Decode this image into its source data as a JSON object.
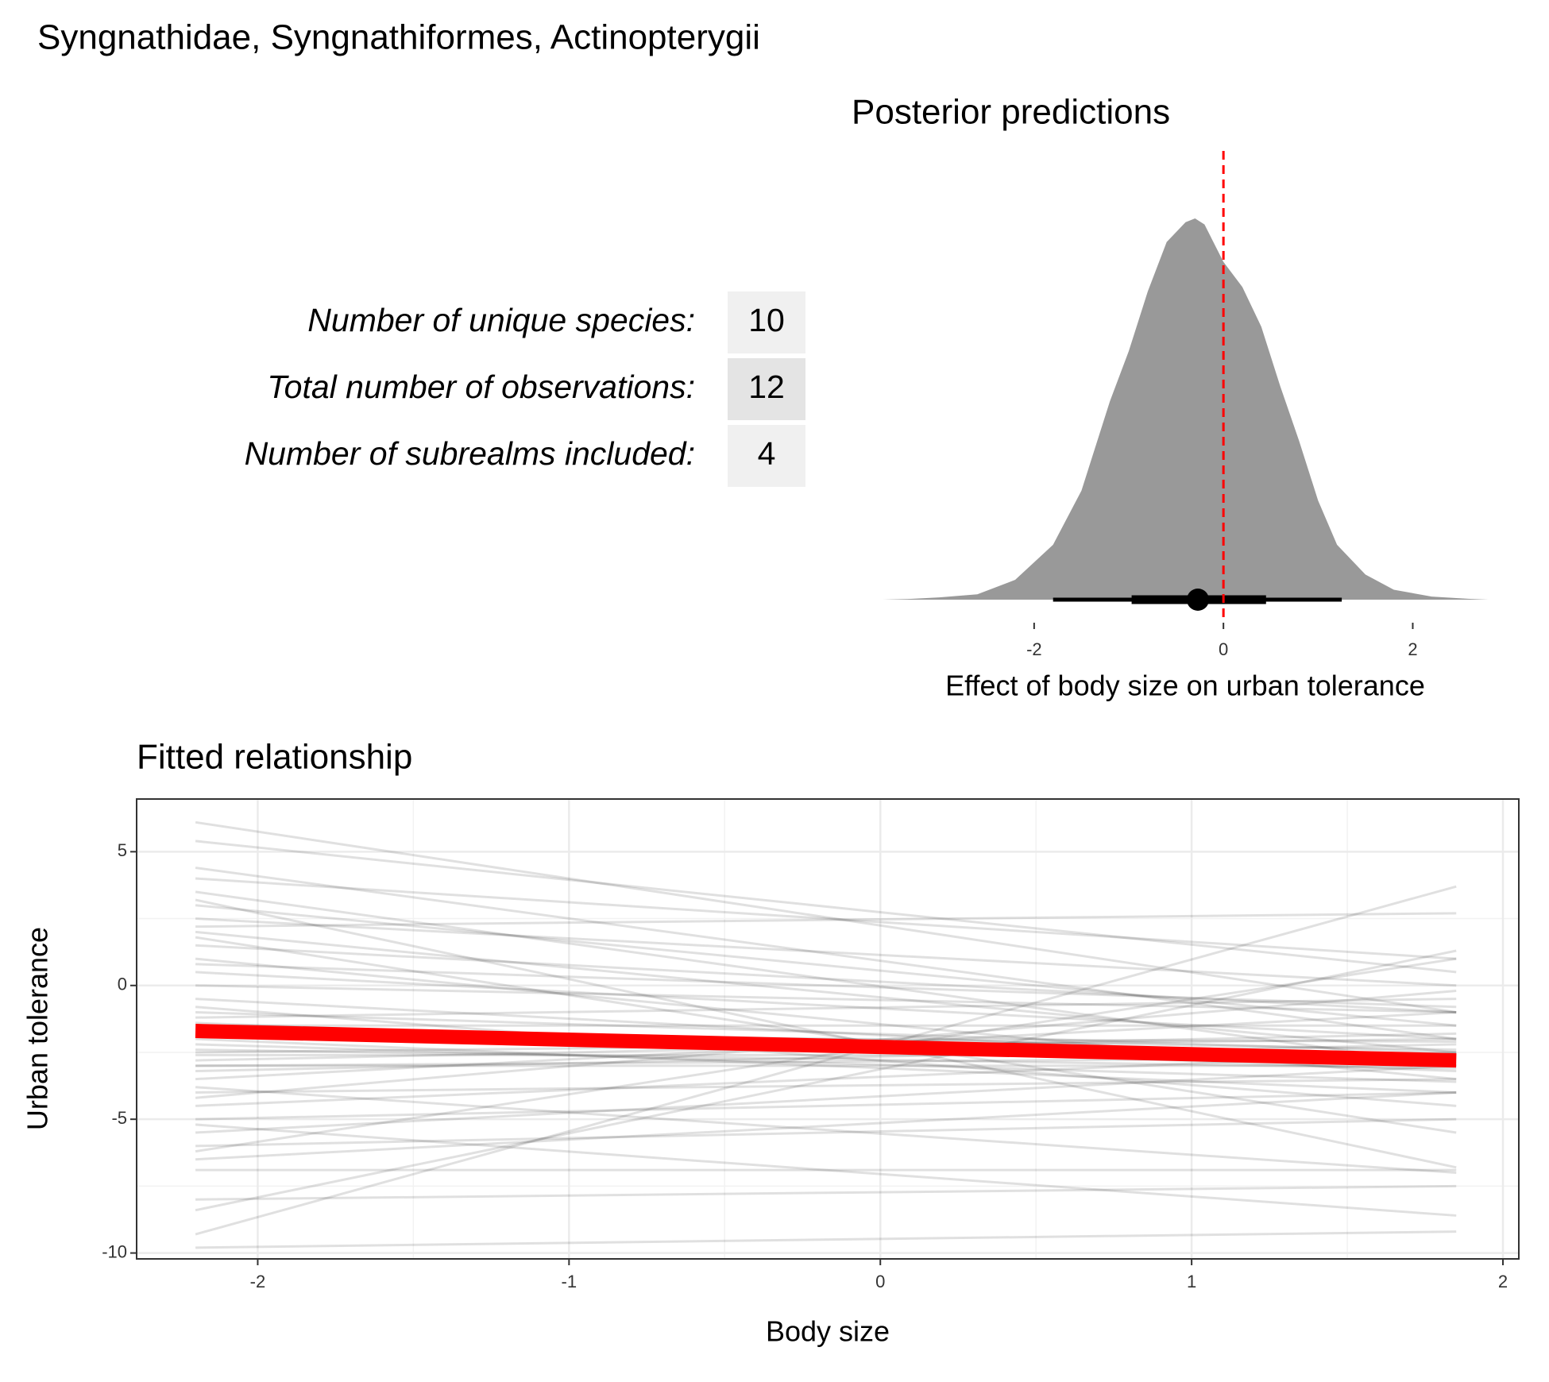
{
  "title": "Syngnathidae, Syngnathiformes, Actinopterygii",
  "table": {
    "rows": [
      {
        "label": "Number of unique species:",
        "value": 10
      },
      {
        "label": "Total number of observations:",
        "value": 12
      },
      {
        "label": "Number of subrealms included:",
        "value": 4
      }
    ]
  },
  "chart_data": [
    {
      "type": "density",
      "title": "Posterior predictions",
      "x_label": "Effect of body size on urban tolerance",
      "x": [
        -3.6,
        -3.3,
        -3.0,
        -2.6,
        -2.2,
        -1.8,
        -1.5,
        -1.2,
        -1.0,
        -0.8,
        -0.6,
        -0.4,
        -0.3,
        -0.2,
        0,
        0.2,
        0.4,
        0.6,
        0.8,
        1.0,
        1.2,
        1.5,
        1.8,
        2.2,
        2.6,
        2.8
      ],
      "values": [
        0,
        0.001,
        0.003,
        0.007,
        0.026,
        0.072,
        0.143,
        0.26,
        0.326,
        0.404,
        0.469,
        0.495,
        0.5,
        0.492,
        0.443,
        0.41,
        0.358,
        0.28,
        0.208,
        0.13,
        0.072,
        0.033,
        0.013,
        0.004,
        0.001,
        0
      ],
      "color": "#999999",
      "point": -0.27,
      "interval_66": [
        -0.97,
        0.45
      ],
      "interval_95": [
        -1.8,
        1.25
      ],
      "interval_color": "#000000",
      "reference_line": 0,
      "reference_color": "#ff0000",
      "xlim": [
        -3.61,
        2.81
      ],
      "ylim": [
        0,
        0.5
      ],
      "xticks": [
        -2,
        0,
        2
      ]
    },
    {
      "type": "line",
      "title": "Fitted relationship",
      "x_label": "Body size",
      "y_label": "Urban tolerance",
      "x": [
        -2.2,
        1.85
      ],
      "draws": [
        [
          6.1,
          -1.0
        ],
        [
          5.4,
          0.5
        ],
        [
          4.4,
          -2.0
        ],
        [
          4.0,
          1.0
        ],
        [
          3.5,
          -3.0
        ],
        [
          3.0,
          -1.5
        ],
        [
          2.5,
          0.0
        ],
        [
          2.0,
          -2.5
        ],
        [
          1.5,
          -1.0
        ],
        [
          1.0,
          -3.5
        ],
        [
          0.5,
          -2.0
        ],
        [
          0.0,
          -1.0
        ],
        [
          -0.5,
          -3.0
        ],
        [
          -1.0,
          -2.5
        ],
        [
          -1.5,
          -1.5
        ],
        [
          -2.0,
          -4.0
        ],
        [
          -2.5,
          -2.0
        ],
        [
          -3.0,
          -3.0
        ],
        [
          -3.5,
          -1.0
        ],
        [
          -4.0,
          -3.5
        ],
        [
          -4.5,
          -2.5
        ],
        [
          -5.0,
          -4.0
        ],
        [
          -5.5,
          -3.0
        ],
        [
          -6.0,
          -5.0
        ],
        [
          -6.5,
          -4.0
        ],
        [
          -6.9,
          -6.9
        ],
        [
          -8.0,
          -7.5
        ],
        [
          -8.4,
          1.3
        ],
        [
          -9.3,
          3.7
        ],
        [
          -9.8,
          -9.2
        ],
        [
          -1.2,
          -0.5
        ],
        [
          -2.8,
          -1.8
        ],
        [
          -3.2,
          -2.2
        ],
        [
          -1.8,
          -2.9
        ],
        [
          -2.2,
          -3.6
        ],
        [
          -0.8,
          -4.5
        ],
        [
          1.8,
          -5.5
        ],
        [
          3.2,
          -6.8
        ],
        [
          -4.2,
          -0.2
        ],
        [
          -6.2,
          1.0
        ],
        [
          2.2,
          2.7
        ],
        [
          -3.8,
          -7.0
        ],
        [
          -5.2,
          -8.6
        ],
        [
          0.8,
          -0.8
        ],
        [
          -1.4,
          -3.2
        ],
        [
          -2.6,
          -2.6
        ],
        [
          -1.9,
          -2.1
        ],
        [
          -2.4,
          -3.1
        ],
        [
          -1.6,
          -2.4
        ],
        [
          -3.0,
          -2.7
        ]
      ],
      "draws_color": "#000000",
      "draws_opacity": 0.12,
      "fit": {
        "values": [
          -1.7,
          -2.8
        ],
        "color": "#ff0000"
      },
      "xlim": [
        -2.389,
        2.051
      ],
      "ylim": [
        -10.22,
        6.97
      ],
      "xticks": [
        -2,
        -1,
        0,
        1,
        2
      ],
      "yticks": [
        5,
        0,
        -5,
        -10
      ],
      "grid": true,
      "minor_grid": true
    }
  ]
}
